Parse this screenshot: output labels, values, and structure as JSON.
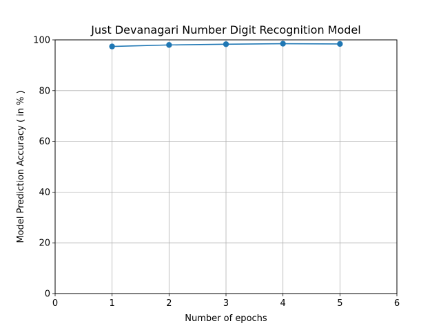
{
  "chart_data": {
    "type": "line",
    "title": "Just Devanagari Number Digit Recognition Model",
    "xlabel": "Number of epochs",
    "ylabel": "Model Prediction Accuracy ( in % )",
    "xlim": [
      0,
      6
    ],
    "ylim": [
      0,
      100
    ],
    "xticks": [
      "0",
      "1",
      "2",
      "3",
      "4",
      "5",
      "6"
    ],
    "yticks": [
      "0",
      "20",
      "40",
      "60",
      "80",
      "100"
    ],
    "grid": true,
    "line_color": "#1f77b4",
    "x": [
      1,
      2,
      3,
      4,
      5
    ],
    "series": [
      {
        "values": [
          97.4,
          98.0,
          98.3,
          98.5,
          98.4
        ]
      }
    ]
  }
}
